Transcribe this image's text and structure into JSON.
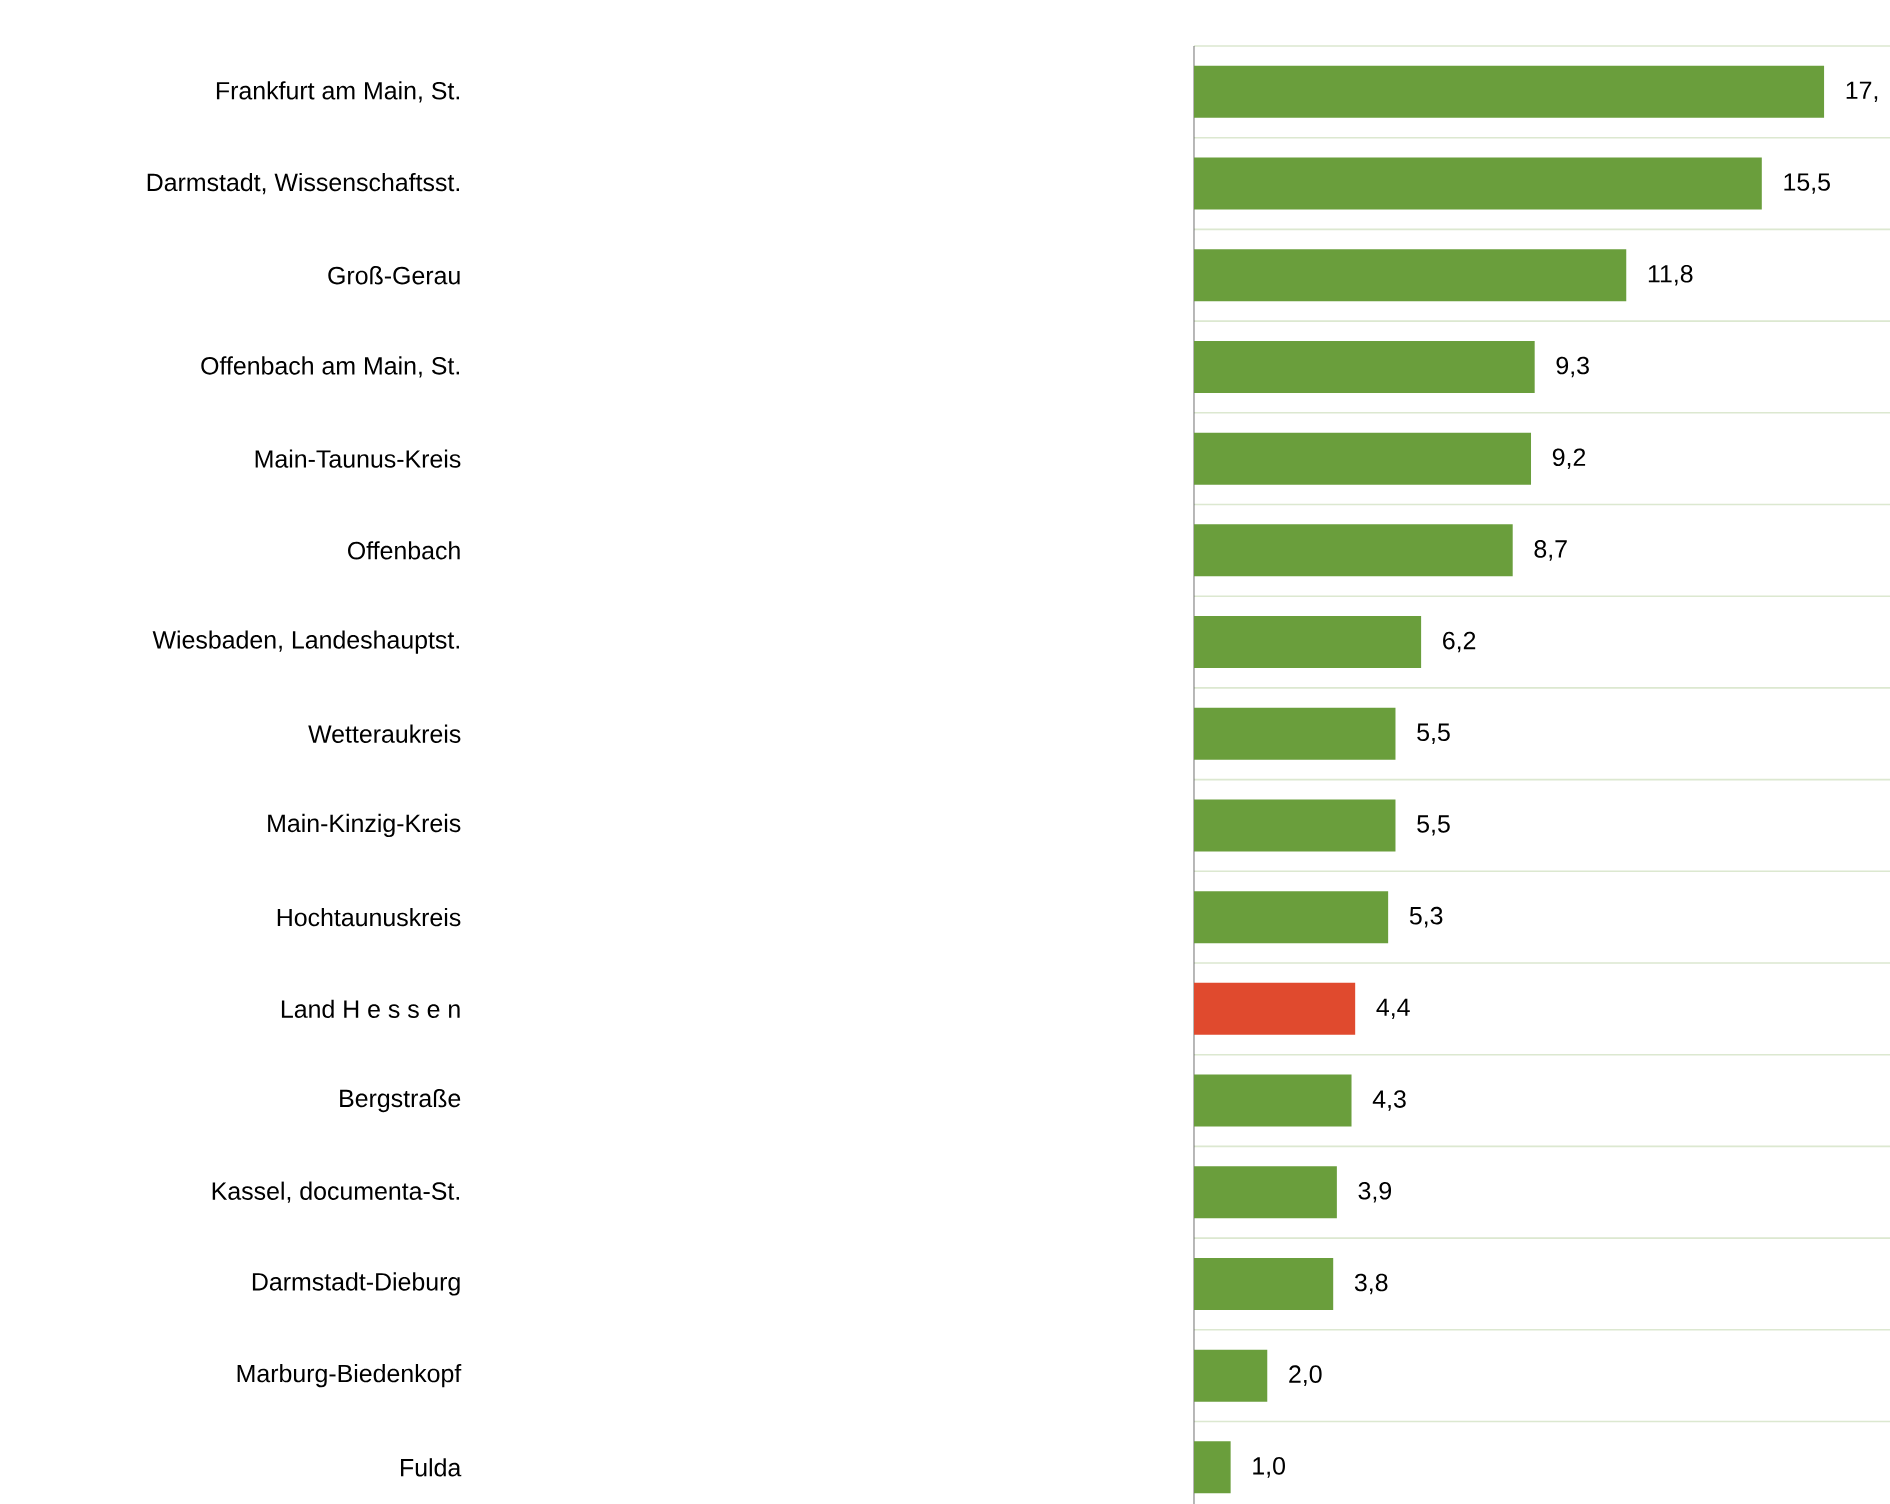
{
  "chart_data": {
    "type": "bar",
    "orientation": "horizontal",
    "categories": [
      "Frankfurt am Main, St.",
      "Darmstadt, Wissenschaftsst.",
      "Groß-Gerau",
      "Offenbach am Main, St.",
      "Main-Taunus-Kreis",
      "Offenbach",
      "Wiesbaden, Landeshauptst.",
      "Wetteraukreis",
      "Main-Kinzig-Kreis",
      "Hochtaunuskreis",
      "Land H e s s e n",
      "Bergstraße",
      "Kassel, documenta-St.",
      "Darmstadt-Dieburg",
      "Marburg-Biedenkopf",
      "Fulda"
    ],
    "values": [
      17.2,
      15.5,
      11.8,
      9.3,
      9.2,
      8.7,
      6.2,
      5.5,
      5.5,
      5.3,
      4.4,
      4.3,
      3.9,
      3.8,
      2.0,
      1.0
    ],
    "colors": [
      "#6a9e3c",
      "#6a9e3c",
      "#6a9e3c",
      "#6a9e3c",
      "#6a9e3c",
      "#6a9e3c",
      "#6a9e3c",
      "#6a9e3c",
      "#6a9e3c",
      "#6a9e3c",
      "#e04a2e",
      "#6a9e3c",
      "#6a9e3c",
      "#6a9e3c",
      "#6a9e3c",
      "#6a9e3c"
    ],
    "value_labels": [
      "17,",
      "15,5",
      "11,8",
      "9,3",
      "9,2",
      "8,7",
      "6,2",
      "5,5",
      "5,5",
      "5,3",
      "4,4",
      "4,3",
      "3,9",
      "3,8",
      "2,0",
      "1,0"
    ],
    "xlim": [
      0,
      19
    ],
    "grid": "y",
    "tick_labels": "y"
  }
}
